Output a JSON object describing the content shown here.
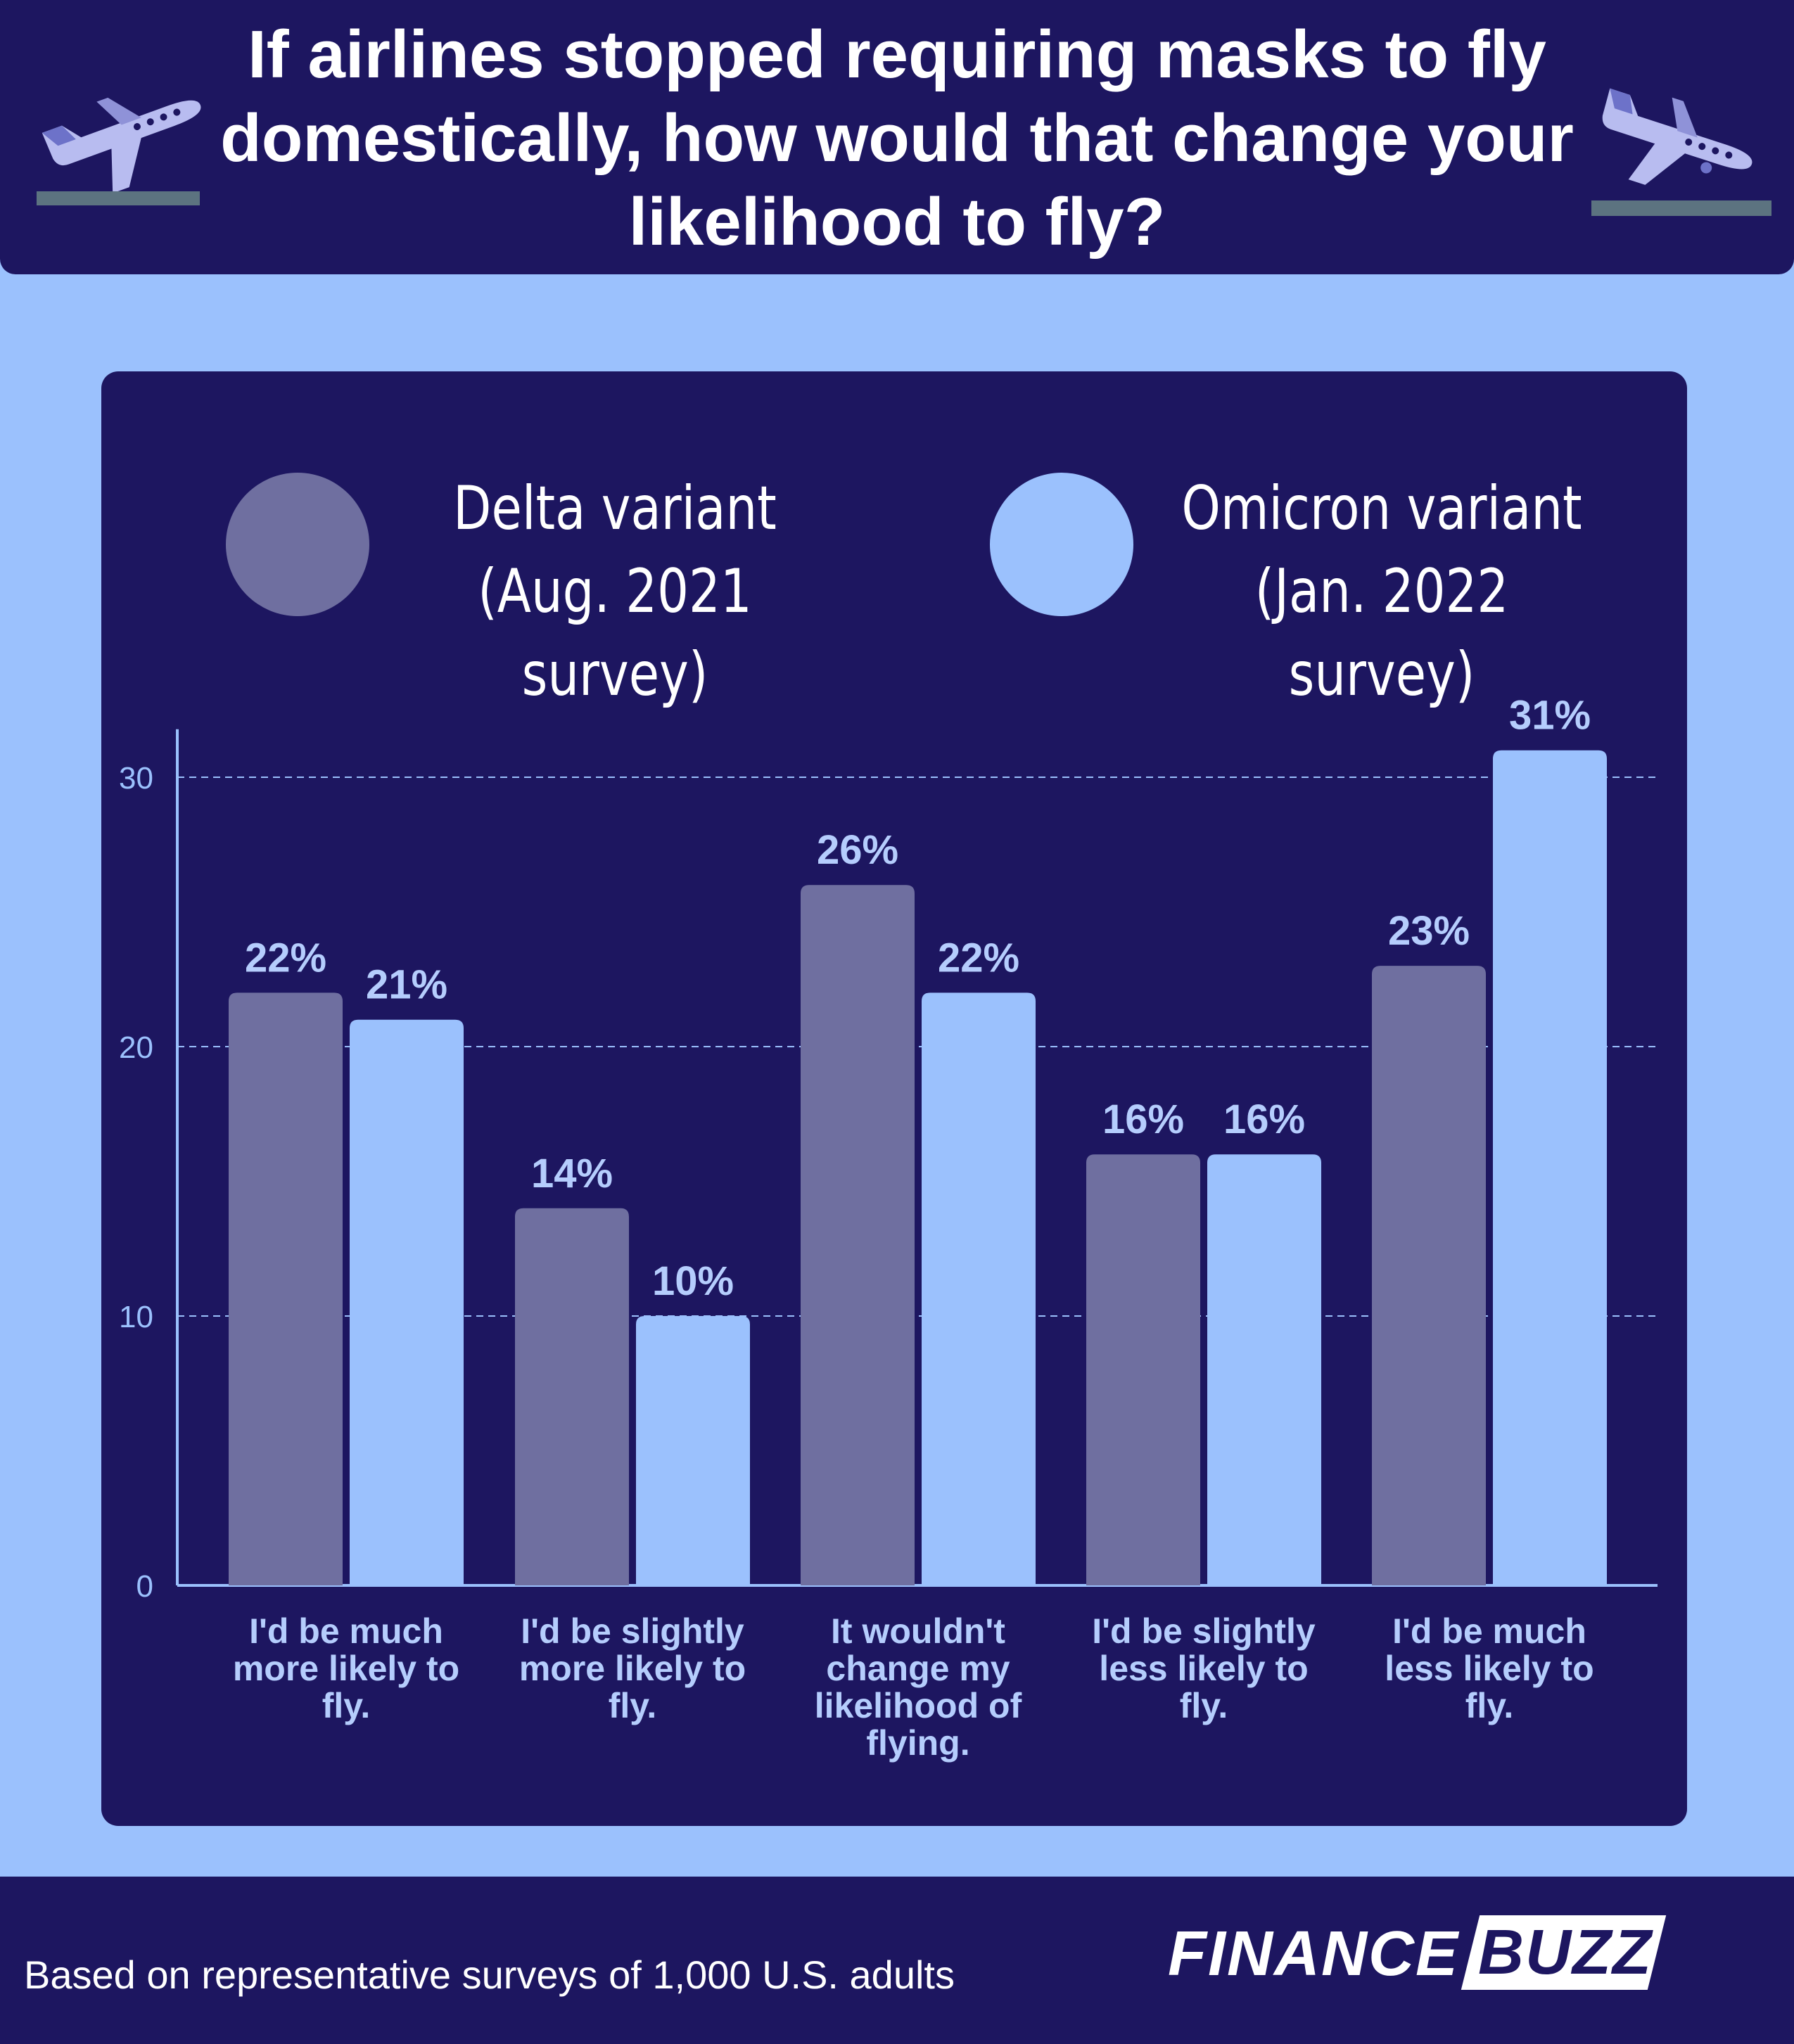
{
  "title": "If airlines stopped requiring masks to fly domestically, how would that change your likelihood to fly?",
  "icons": [
    "airplane-takeoff-icon",
    "airplane-landing-icon"
  ],
  "colors": {
    "background": "#9bc1fd",
    "panel": "#1d1660",
    "delta": "#6f6fa0",
    "omicron": "#9bc1fd",
    "gridline": "#9bc1fd",
    "runway": "#5c7380",
    "plane": "#b8bcf0"
  },
  "legend": {
    "delta": "Delta variant\n(Aug. 2021 survey)",
    "omicron": "Omicron variant\n(Jan. 2022 survey)"
  },
  "chart_data": {
    "type": "bar",
    "categories": [
      "I'd be much more likely to fly.",
      "I'd be slightly more likely to fly.",
      "It wouldn't change my likelihood of flying.",
      "I'd be slightly less likely to fly.",
      "I'd be much less likely to fly."
    ],
    "series": [
      {
        "name": "Delta variant (Aug. 2021 survey)",
        "values": [
          22,
          14,
          26,
          16,
          23
        ],
        "labels": [
          "22%",
          "14%",
          "26%",
          "16%",
          "23%"
        ]
      },
      {
        "name": "Omicron variant (Jan. 2022 survey)",
        "values": [
          21,
          10,
          22,
          16,
          31
        ],
        "labels": [
          "21%",
          "10%",
          "22%",
          "16%",
          "31%"
        ]
      }
    ],
    "yticks": [
      0,
      10,
      20,
      30
    ],
    "ylim": [
      0,
      31
    ],
    "grid": true,
    "legend_position": "top"
  },
  "footer": {
    "note": "Based on representative surveys of 1,000 U.S. adults",
    "logo_left": "FINANCE",
    "logo_right": "BUZZ"
  }
}
